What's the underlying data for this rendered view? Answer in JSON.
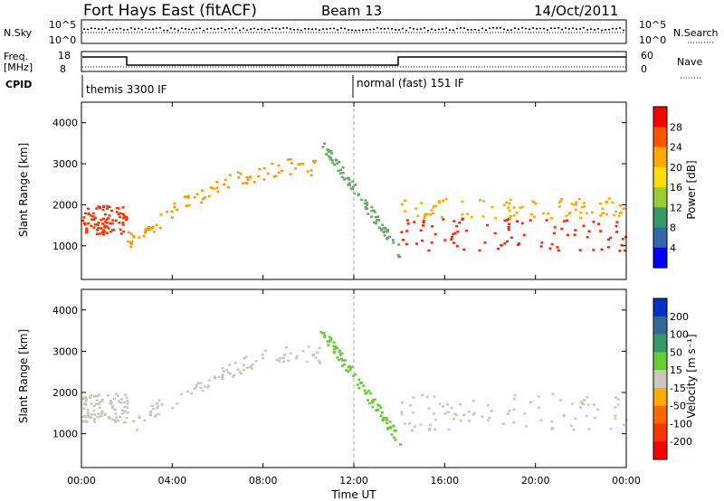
{
  "header": {
    "station": "Fort Hays East (fitACF)",
    "beam": "Beam 13",
    "date": "14/Oct/2011"
  },
  "status_panel": {
    "nsky_label": "N.Sky",
    "nsky_ticks": [
      "10^5",
      "10^0"
    ],
    "nsearch_label": "N.Search",
    "nsearch_ticks": [
      "10^5",
      "10^0"
    ],
    "freq_label": "Freq.",
    "freq_unit": "[MHz]",
    "freq_ticks": [
      "18",
      "8"
    ],
    "nave_label": "Nave",
    "nave_ticks": [
      "60",
      "0"
    ],
    "cpid_label": "CPID",
    "cpid_segments": [
      {
        "label": "themis 3300 IF",
        "start_hour": 0
      },
      {
        "label": "normal (fast) 151 IF",
        "start_hour": 12
      }
    ]
  },
  "chart_data": [
    {
      "type": "heatmap",
      "name": "power",
      "ylabel": "Slant Range [km]",
      "ylim": [
        180,
        4500
      ],
      "yticks": [
        1000,
        2000,
        3000,
        4000
      ],
      "xlim": [
        0,
        24
      ],
      "xticks": [
        "00:00",
        "04:00",
        "08:00",
        "12:00",
        "16:00",
        "20:00",
        "00:00"
      ],
      "colorbar": {
        "label": "Power [dB]",
        "ticks": [
          "28",
          "24",
          "20",
          "16",
          "12",
          "8",
          "4"
        ],
        "colors": [
          "#ff0000",
          "#ff5500",
          "#ffaa00",
          "#ffdd00",
          "#99cc33",
          "#339966",
          "#3366aa",
          "#0000ff"
        ]
      },
      "bands": [
        {
          "x": [
            0.0,
            2.0
          ],
          "y": [
            1300,
            2000
          ],
          "color": "#ff3300"
        },
        {
          "x": [
            2.0,
            10.5
          ],
          "y": [
            1200,
            3000
          ],
          "color": "#ff9900",
          "shape": "arc"
        },
        {
          "x": [
            10.5,
            14.0
          ],
          "y": [
            900,
            3600
          ],
          "color": "#66aa66",
          "shape": "decline"
        },
        {
          "x": [
            14.0,
            24.0
          ],
          "y": [
            900,
            1700
          ],
          "color": "#ff2200"
        },
        {
          "x": [
            14.0,
            24.0
          ],
          "y": [
            1700,
            2200
          ],
          "color": "#ffaa00"
        }
      ]
    },
    {
      "type": "heatmap",
      "name": "velocity",
      "ylabel": "Slant Range [km]",
      "xlabel": "Time UT",
      "ylim": [
        180,
        4500
      ],
      "yticks": [
        1000,
        2000,
        3000,
        4000
      ],
      "xlim": [
        0,
        24
      ],
      "xticks": [
        "00:00",
        "04:00",
        "08:00",
        "12:00",
        "16:00",
        "20:00",
        "00:00"
      ],
      "colorbar": {
        "label": "Velocity [m s⁻¹]",
        "ticks": [
          "200",
          "100",
          "50",
          "15",
          "-15",
          "-50",
          "-100",
          "-200"
        ],
        "colors": [
          "#0033cc",
          "#336699",
          "#339966",
          "#66cc33",
          "#c8c8c0",
          "#ffaa00",
          "#ff6600",
          "#ff3300",
          "#ff0000"
        ]
      },
      "bands": [
        {
          "x": [
            0.0,
            2.0
          ],
          "y": [
            1300,
            2000
          ],
          "color": "#c8c8c0"
        },
        {
          "x": [
            2.0,
            10.5
          ],
          "y": [
            1200,
            3000
          ],
          "color": "#c8c8c0",
          "shape": "arc"
        },
        {
          "x": [
            10.5,
            14.0
          ],
          "y": [
            900,
            3600
          ],
          "color": "#66cc33",
          "shape": "decline"
        },
        {
          "x": [
            14.0,
            24.0
          ],
          "y": [
            1100,
            2000
          ],
          "color": "#c8c8c0"
        }
      ]
    }
  ]
}
